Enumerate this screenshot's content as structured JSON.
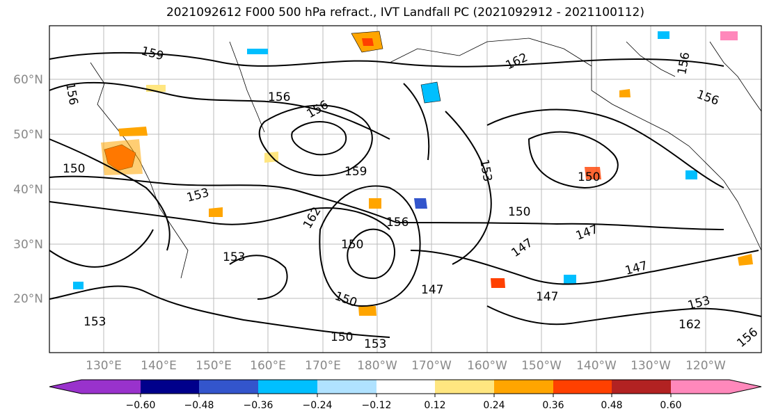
{
  "title": "2021092612 F000 500 hPa refract., IVT Landfall PC (2021092912 - 2021100112)",
  "map": {
    "lat_labels": [
      "60°N",
      "50°N",
      "40°N",
      "30°N",
      "20°N"
    ],
    "lon_labels": [
      "130°E",
      "140°E",
      "150°E",
      "160°E",
      "170°E",
      "180°W",
      "170°W",
      "160°W",
      "150°W",
      "140°W",
      "130°W",
      "120°W"
    ],
    "contour_labels": [
      "159",
      "156",
      "156",
      "150",
      "153",
      "156",
      "159",
      "162",
      "150",
      "153",
      "153",
      "150",
      "150",
      "147",
      "147",
      "147",
      "153",
      "156",
      "150",
      "153",
      "147",
      "150",
      "162",
      "147",
      "153",
      "162",
      "156",
      "156",
      "156"
    ],
    "label_color": "#888888"
  },
  "colorbar": {
    "ticks": [
      "−0.60",
      "−0.48",
      "−0.36",
      "−0.24",
      "−0.12",
      "0.12",
      "0.24",
      "0.36",
      "0.48",
      "0.60"
    ],
    "colors": [
      "#9932cc",
      "#00008b",
      "#3355cc",
      "#00bfff",
      "#b0e2ff",
      "#ffffff",
      "#ffe680",
      "#ffa500",
      "#ff4000",
      "#b22222",
      "#ff88bb"
    ]
  }
}
